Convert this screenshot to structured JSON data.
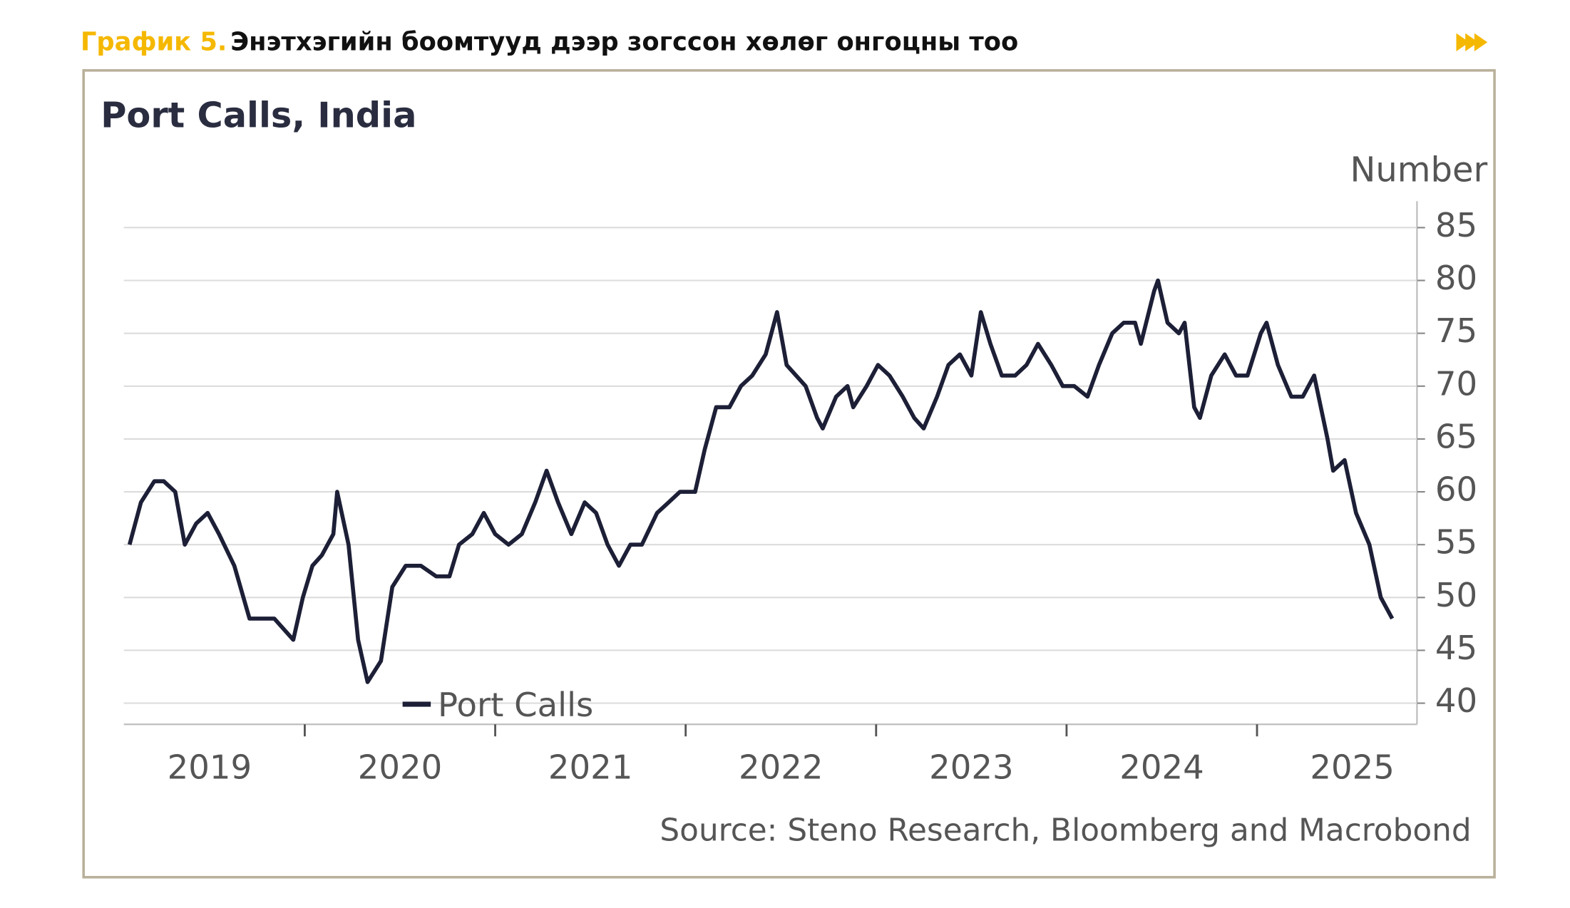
{
  "header": {
    "label": "График 5.",
    "title": "Энэтхэгийн боомтууд дээр зогссон хөлөг онгоцны тоо"
  },
  "chart_data": {
    "type": "line",
    "title": "Port Calls, India",
    "y_axis_label": "Number",
    "source": "Source: Steno Research, Bloomberg and Macrobond",
    "x": [
      2019.08,
      2019.14,
      2019.21,
      2019.26,
      2019.32,
      2019.37,
      2019.43,
      2019.49,
      2019.55,
      2019.63,
      2019.71,
      2019.77,
      2019.84,
      2019.94,
      2019.99,
      2020.04,
      2020.09,
      2020.15,
      2020.17,
      2020.23,
      2020.28,
      2020.33,
      2020.4,
      2020.46,
      2020.53,
      2020.61,
      2020.69,
      2020.76,
      2020.81,
      2020.88,
      2020.94,
      2021.0,
      2021.07,
      2021.14,
      2021.21,
      2021.27,
      2021.33,
      2021.4,
      2021.47,
      2021.53,
      2021.59,
      2021.65,
      2021.71,
      2021.77,
      2021.85,
      2021.91,
      2021.97,
      2022.05,
      2022.1,
      2022.16,
      2022.23,
      2022.29,
      2022.35,
      2022.42,
      2022.48,
      2022.53,
      2022.58,
      2022.63,
      2022.69,
      2022.72,
      2022.79,
      2022.85,
      2022.88,
      2022.95,
      2023.01,
      2023.07,
      2023.14,
      2023.2,
      2023.25,
      2023.32,
      2023.38,
      2023.44,
      2023.5,
      2023.55,
      2023.6,
      2023.66,
      2023.73,
      2023.79,
      2023.85,
      2023.92,
      2023.98,
      2024.04,
      2024.11,
      2024.17,
      2024.24,
      2024.3,
      2024.36,
      2024.39,
      2024.46,
      2024.48,
      2024.53,
      2024.59,
      2024.62,
      2024.67,
      2024.7,
      2024.76,
      2024.83,
      2024.89,
      2024.95,
      2025.02,
      2025.05,
      2025.11,
      2025.18,
      2025.24,
      2025.3,
      2025.37,
      2025.4,
      2025.46,
      2025.52,
      2025.59,
      2025.65,
      2025.71
    ],
    "series": [
      {
        "name": "Port Calls",
        "color": "#1c1f36",
        "values": [
          55,
          59,
          61,
          61,
          60,
          55,
          57,
          58,
          56,
          53,
          48,
          48,
          48,
          46,
          50,
          53,
          54,
          56,
          60,
          55,
          46,
          42,
          44,
          51,
          53,
          53,
          52,
          52,
          55,
          56,
          58,
          56,
          55,
          56,
          59,
          62,
          59,
          56,
          59,
          58,
          55,
          53,
          55,
          55,
          58,
          59,
          60,
          60,
          64,
          68,
          68,
          70,
          71,
          73,
          77,
          72,
          71,
          70,
          67,
          66,
          69,
          70,
          68,
          70,
          72,
          71,
          69,
          67,
          66,
          69,
          72,
          73,
          71,
          77,
          74,
          71,
          71,
          72,
          74,
          72,
          70,
          70,
          69,
          72,
          75,
          76,
          76,
          74,
          79,
          80,
          76,
          75,
          76,
          68,
          67,
          71,
          73,
          71,
          71,
          75,
          76,
          72,
          69,
          69,
          71,
          65,
          62,
          63,
          58,
          55,
          50,
          48
        ]
      }
    ],
    "xlim": [
      2019.05,
      2025.84
    ],
    "xticks": [
      {
        "value": 2019.5,
        "label": "2019"
      },
      {
        "value": 2020.5,
        "label": "2020"
      },
      {
        "value": 2021.5,
        "label": "2021"
      },
      {
        "value": 2022.5,
        "label": "2022"
      },
      {
        "value": 2023.5,
        "label": "2023"
      },
      {
        "value": 2024.5,
        "label": "2024"
      },
      {
        "value": 2025.5,
        "label": "2025"
      }
    ],
    "ylim": [
      38,
      87.5
    ],
    "yticks": [
      40,
      45,
      50,
      55,
      60,
      65,
      70,
      75,
      80,
      85
    ],
    "grid": true,
    "legend": "lower left"
  }
}
